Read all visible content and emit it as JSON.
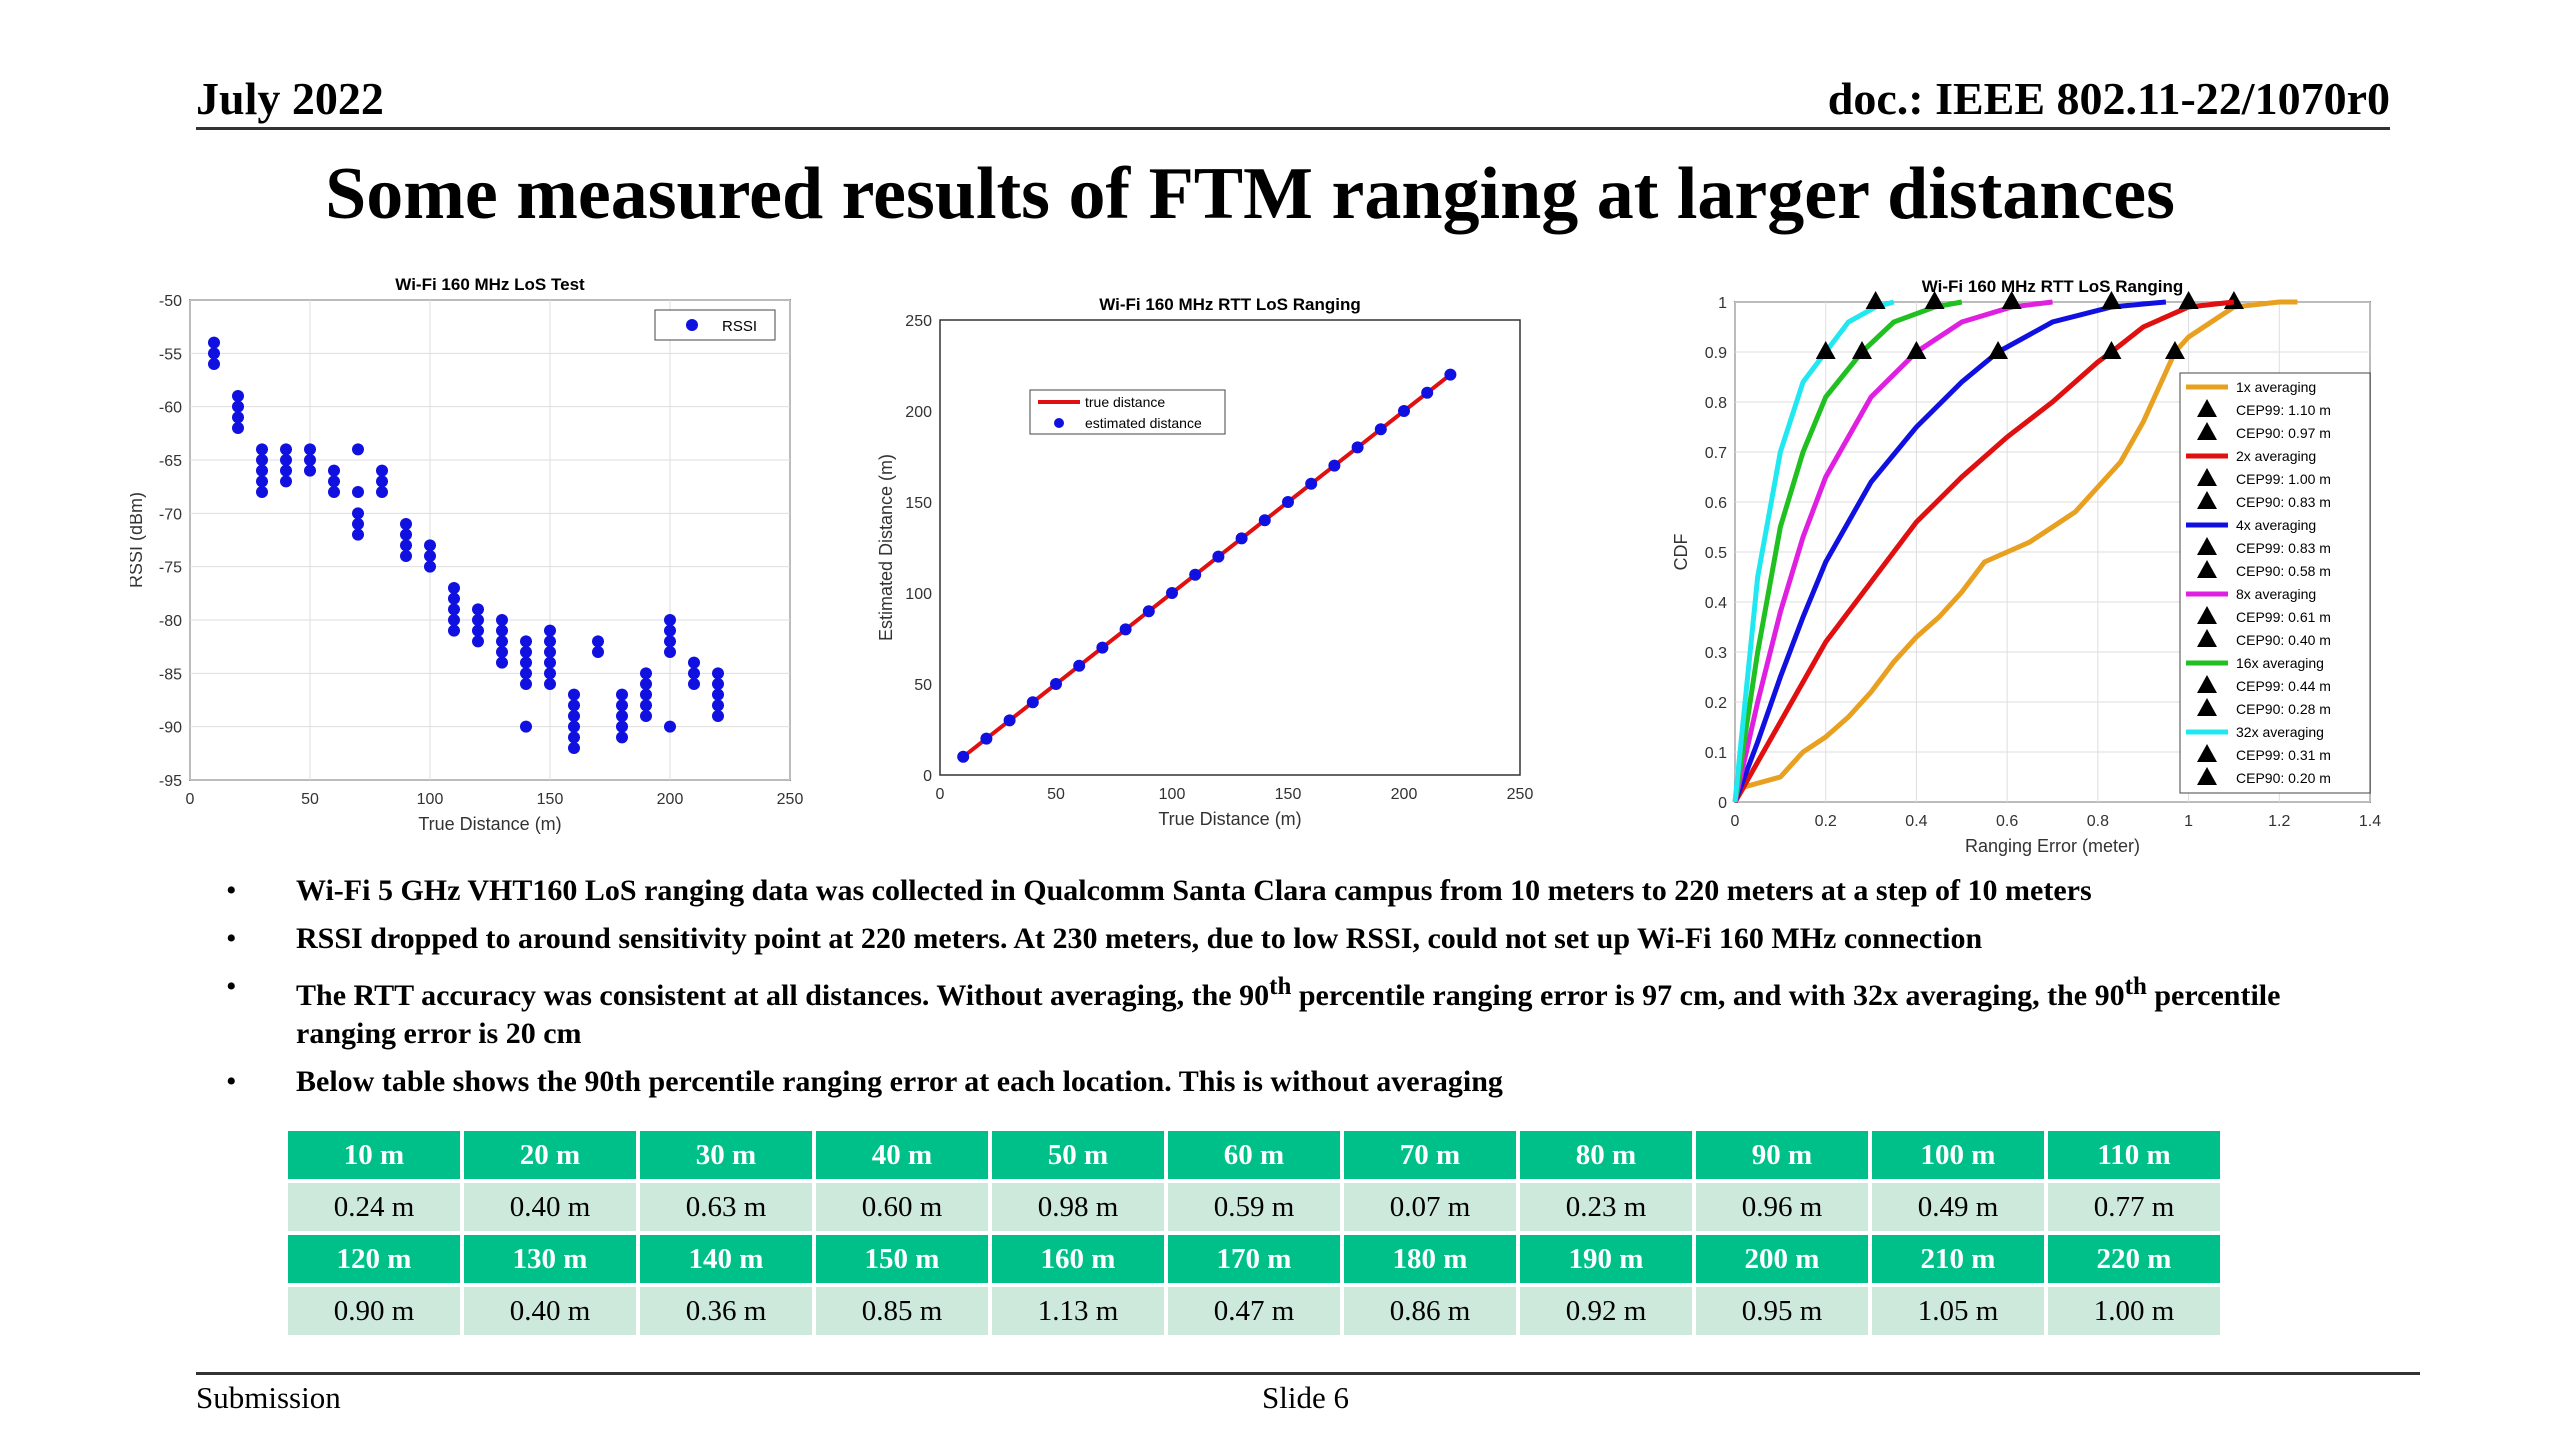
{
  "header": {
    "date": "July 2022",
    "doc": "doc.: IEEE 802.11-22/1070r0"
  },
  "title": "Some measured results of FTM ranging at larger distances",
  "chart_data": [
    {
      "type": "scatter",
      "title": "Wi-Fi 160 MHz LoS Test",
      "xlabel": "True Distance (m)",
      "ylabel": "RSSI (dBm)",
      "xlim": [
        0,
        250
      ],
      "ylim": [
        -95,
        -50
      ],
      "xticks": [
        0,
        50,
        100,
        150,
        200,
        250
      ],
      "yticks": [
        -95,
        -90,
        -85,
        -80,
        -75,
        -70,
        -65,
        -60,
        -55,
        -50
      ],
      "legend": [
        "RSSI"
      ],
      "legend_position": "top-right",
      "grid": true,
      "series": [
        {
          "name": "RSSI",
          "color": "#1010e0",
          "points": [
            [
              10,
              -54
            ],
            [
              10,
              -55
            ],
            [
              10,
              -56
            ],
            [
              20,
              -59
            ],
            [
              20,
              -60
            ],
            [
              20,
              -61
            ],
            [
              20,
              -62
            ],
            [
              30,
              -64
            ],
            [
              30,
              -65
            ],
            [
              30,
              -66
            ],
            [
              30,
              -67
            ],
            [
              30,
              -68
            ],
            [
              40,
              -64
            ],
            [
              40,
              -65
            ],
            [
              40,
              -66
            ],
            [
              40,
              -67
            ],
            [
              50,
              -64
            ],
            [
              50,
              -65
            ],
            [
              50,
              -66
            ],
            [
              60,
              -66
            ],
            [
              60,
              -67
            ],
            [
              60,
              -68
            ],
            [
              70,
              -64
            ],
            [
              70,
              -68
            ],
            [
              70,
              -70
            ],
            [
              70,
              -71
            ],
            [
              70,
              -72
            ],
            [
              80,
              -66
            ],
            [
              80,
              -67
            ],
            [
              80,
              -68
            ],
            [
              90,
              -71
            ],
            [
              90,
              -72
            ],
            [
              90,
              -73
            ],
            [
              90,
              -74
            ],
            [
              100,
              -73
            ],
            [
              100,
              -74
            ],
            [
              100,
              -75
            ],
            [
              110,
              -77
            ],
            [
              110,
              -78
            ],
            [
              110,
              -79
            ],
            [
              110,
              -80
            ],
            [
              110,
              -81
            ],
            [
              120,
              -79
            ],
            [
              120,
              -80
            ],
            [
              120,
              -81
            ],
            [
              120,
              -82
            ],
            [
              130,
              -80
            ],
            [
              130,
              -81
            ],
            [
              130,
              -82
            ],
            [
              130,
              -83
            ],
            [
              130,
              -84
            ],
            [
              140,
              -82
            ],
            [
              140,
              -83
            ],
            [
              140,
              -84
            ],
            [
              140,
              -85
            ],
            [
              140,
              -86
            ],
            [
              140,
              -90
            ],
            [
              150,
              -81
            ],
            [
              150,
              -82
            ],
            [
              150,
              -83
            ],
            [
              150,
              -84
            ],
            [
              150,
              -85
            ],
            [
              150,
              -86
            ],
            [
              160,
              -87
            ],
            [
              160,
              -88
            ],
            [
              160,
              -89
            ],
            [
              160,
              -90
            ],
            [
              160,
              -91
            ],
            [
              160,
              -92
            ],
            [
              170,
              -82
            ],
            [
              170,
              -83
            ],
            [
              180,
              -87
            ],
            [
              180,
              -88
            ],
            [
              180,
              -89
            ],
            [
              180,
              -90
            ],
            [
              180,
              -91
            ],
            [
              190,
              -85
            ],
            [
              190,
              -86
            ],
            [
              190,
              -87
            ],
            [
              190,
              -88
            ],
            [
              190,
              -89
            ],
            [
              200,
              -80
            ],
            [
              200,
              -81
            ],
            [
              200,
              -82
            ],
            [
              200,
              -83
            ],
            [
              200,
              -90
            ],
            [
              210,
              -84
            ],
            [
              210,
              -85
            ],
            [
              210,
              -86
            ],
            [
              220,
              -85
            ],
            [
              220,
              -86
            ],
            [
              220,
              -87
            ],
            [
              220,
              -88
            ],
            [
              220,
              -89
            ]
          ]
        }
      ]
    },
    {
      "type": "line",
      "title": "Wi-Fi 160 MHz RTT LoS Ranging",
      "xlabel": "True Distance (m)",
      "ylabel": "Estimated Distance (m)",
      "xlim": [
        0,
        250
      ],
      "ylim": [
        0,
        250
      ],
      "xticks": [
        0,
        50,
        100,
        150,
        200,
        250
      ],
      "yticks": [
        0,
        50,
        100,
        150,
        200,
        250
      ],
      "legend_position": "top-left",
      "grid": false,
      "x": [
        10,
        20,
        30,
        40,
        50,
        60,
        70,
        80,
        90,
        100,
        110,
        120,
        130,
        140,
        150,
        160,
        170,
        180,
        190,
        200,
        210,
        220
      ],
      "series": [
        {
          "name": "true distance",
          "color": "#e01010",
          "values": [
            10,
            20,
            30,
            40,
            50,
            60,
            70,
            80,
            90,
            100,
            110,
            120,
            130,
            140,
            150,
            160,
            170,
            180,
            190,
            200,
            210,
            220
          ]
        },
        {
          "name": "estimated distance",
          "color": "#1010e0",
          "values": [
            10,
            20,
            30,
            40,
            50,
            60,
            70,
            80,
            90,
            100,
            110,
            120,
            130,
            140,
            150,
            160,
            170,
            180,
            190,
            200,
            210,
            220
          ]
        }
      ]
    },
    {
      "type": "line",
      "title": "Wi-Fi 160 MHz RTT LoS Ranging",
      "xlabel": "Ranging Error (meter)",
      "ylabel": "CDF",
      "xlim": [
        0,
        1.4
      ],
      "ylim": [
        0,
        1
      ],
      "xticks": [
        0,
        0.2,
        0.4,
        0.6,
        0.8,
        1,
        1.2,
        1.4
      ],
      "yticks": [
        0,
        0.1,
        0.2,
        0.3,
        0.4,
        0.5,
        0.6,
        0.7,
        0.8,
        0.9,
        1
      ],
      "legend_position": "right",
      "grid": true,
      "series": [
        {
          "name": "1x averaging",
          "color": "#e8a020",
          "cep99": 1.1,
          "cep90": 0.97,
          "labels": [
            "CEP99: 1.10 m",
            "CEP90: 0.97 m"
          ],
          "points": [
            [
              0,
              0
            ],
            [
              0.02,
              0.03
            ],
            [
              0.1,
              0.05
            ],
            [
              0.15,
              0.1
            ],
            [
              0.2,
              0.13
            ],
            [
              0.25,
              0.17
            ],
            [
              0.3,
              0.22
            ],
            [
              0.35,
              0.28
            ],
            [
              0.4,
              0.33
            ],
            [
              0.45,
              0.37
            ],
            [
              0.5,
              0.42
            ],
            [
              0.55,
              0.48
            ],
            [
              0.6,
              0.5
            ],
            [
              0.65,
              0.52
            ],
            [
              0.7,
              0.55
            ],
            [
              0.75,
              0.58
            ],
            [
              0.8,
              0.63
            ],
            [
              0.85,
              0.68
            ],
            [
              0.9,
              0.76
            ],
            [
              0.95,
              0.86
            ],
            [
              0.97,
              0.9
            ],
            [
              1.0,
              0.93
            ],
            [
              1.05,
              0.96
            ],
            [
              1.1,
              0.99
            ],
            [
              1.2,
              1
            ],
            [
              1.24,
              1
            ]
          ]
        },
        {
          "name": "2x averaging",
          "color": "#e01010",
          "cep99": 1.0,
          "cep90": 0.83,
          "labels": [
            "CEP99: 1.00 m",
            "CEP90: 0.83 m"
          ],
          "points": [
            [
              0,
              0
            ],
            [
              0.05,
              0.08
            ],
            [
              0.1,
              0.16
            ],
            [
              0.15,
              0.24
            ],
            [
              0.2,
              0.32
            ],
            [
              0.3,
              0.44
            ],
            [
              0.4,
              0.56
            ],
            [
              0.5,
              0.65
            ],
            [
              0.6,
              0.73
            ],
            [
              0.7,
              0.8
            ],
            [
              0.8,
              0.88
            ],
            [
              0.83,
              0.9
            ],
            [
              0.9,
              0.95
            ],
            [
              1.0,
              0.99
            ],
            [
              1.1,
              1
            ]
          ]
        },
        {
          "name": "4x averaging",
          "color": "#1010e0",
          "cep99": 0.83,
          "cep90": 0.58,
          "labels": [
            "CEP99: 0.83 m",
            "CEP90: 0.58 m"
          ],
          "points": [
            [
              0,
              0
            ],
            [
              0.05,
              0.12
            ],
            [
              0.1,
              0.25
            ],
            [
              0.15,
              0.37
            ],
            [
              0.2,
              0.48
            ],
            [
              0.3,
              0.64
            ],
            [
              0.4,
              0.75
            ],
            [
              0.5,
              0.84
            ],
            [
              0.58,
              0.9
            ],
            [
              0.7,
              0.96
            ],
            [
              0.83,
              0.99
            ],
            [
              0.95,
              1
            ]
          ]
        },
        {
          "name": "8x averaging",
          "color": "#e020e0",
          "cep99": 0.61,
          "cep90": 0.4,
          "labels": [
            "CEP99: 0.61 m",
            "CEP90: 0.40 m"
          ],
          "points": [
            [
              0,
              0
            ],
            [
              0.05,
              0.2
            ],
            [
              0.1,
              0.38
            ],
            [
              0.15,
              0.53
            ],
            [
              0.2,
              0.65
            ],
            [
              0.3,
              0.81
            ],
            [
              0.4,
              0.9
            ],
            [
              0.5,
              0.96
            ],
            [
              0.61,
              0.99
            ],
            [
              0.7,
              1
            ]
          ]
        },
        {
          "name": "16x averaging",
          "color": "#20c020",
          "cep99": 0.44,
          "cep90": 0.28,
          "labels": [
            "CEP99: 0.44 m",
            "CEP90: 0.28 m"
          ],
          "points": [
            [
              0,
              0
            ],
            [
              0.05,
              0.3
            ],
            [
              0.1,
              0.55
            ],
            [
              0.15,
              0.7
            ],
            [
              0.2,
              0.81
            ],
            [
              0.28,
              0.9
            ],
            [
              0.35,
              0.96
            ],
            [
              0.44,
              0.99
            ],
            [
              0.5,
              1
            ]
          ]
        },
        {
          "name": "32x averaging",
          "color": "#20e8f0",
          "cep99": 0.31,
          "cep90": 0.2,
          "labels": [
            "CEP99: 0.31 m",
            "CEP90: 0.20 m"
          ],
          "points": [
            [
              0,
              0
            ],
            [
              0.05,
              0.45
            ],
            [
              0.1,
              0.7
            ],
            [
              0.15,
              0.84
            ],
            [
              0.2,
              0.9
            ],
            [
              0.25,
              0.96
            ],
            [
              0.31,
              0.99
            ],
            [
              0.35,
              1
            ]
          ]
        }
      ]
    }
  ],
  "bullets": [
    {
      "text": "Wi-Fi 5 GHz VHT160 LoS ranging data was collected in Qualcomm Santa Clara campus from 10 meters to 220 meters at a step of 10 meters"
    },
    {
      "text": "RSSI dropped to around sensitivity point at 220 meters. At 230 meters, due to low RSSI, could not set up Wi-Fi 160 MHz connection"
    },
    {
      "text_a": "The RTT accuracy was consistent at all distances. Without averaging, the 90",
      "sup1": "th",
      "text_b": " percentile ranging error is 97 cm, and with 32x averaging, the 90",
      "sup2": "th",
      "text_c": " percentile ranging error is 20 cm"
    },
    {
      "text": "Below table shows the 90th percentile ranging error at each location. This is without averaging"
    }
  ],
  "table": {
    "row1_head": [
      "10 m",
      "20 m",
      "30 m",
      "40 m",
      "50 m",
      "60 m",
      "70 m",
      "80 m",
      "90 m",
      "100 m",
      "110 m"
    ],
    "row1_vals": [
      "0.24 m",
      "0.40 m",
      "0.63 m",
      "0.60 m",
      "0.98 m",
      "0.59 m",
      "0.07 m",
      "0.23 m",
      "0.96 m",
      "0.49 m",
      "0.77 m"
    ],
    "row2_head": [
      "120 m",
      "130 m",
      "140 m",
      "150 m",
      "160 m",
      "170 m",
      "180 m",
      "190 m",
      "200 m",
      "210 m",
      "220 m"
    ],
    "row2_vals": [
      "0.90 m",
      "0.40 m",
      "0.36 m",
      "0.85 m",
      "1.13 m",
      "0.47 m",
      "0.86 m",
      "0.92 m",
      "0.95 m",
      "1.05 m",
      "1.00 m"
    ]
  },
  "footer": {
    "left": "Submission",
    "slide": "Slide 6"
  }
}
